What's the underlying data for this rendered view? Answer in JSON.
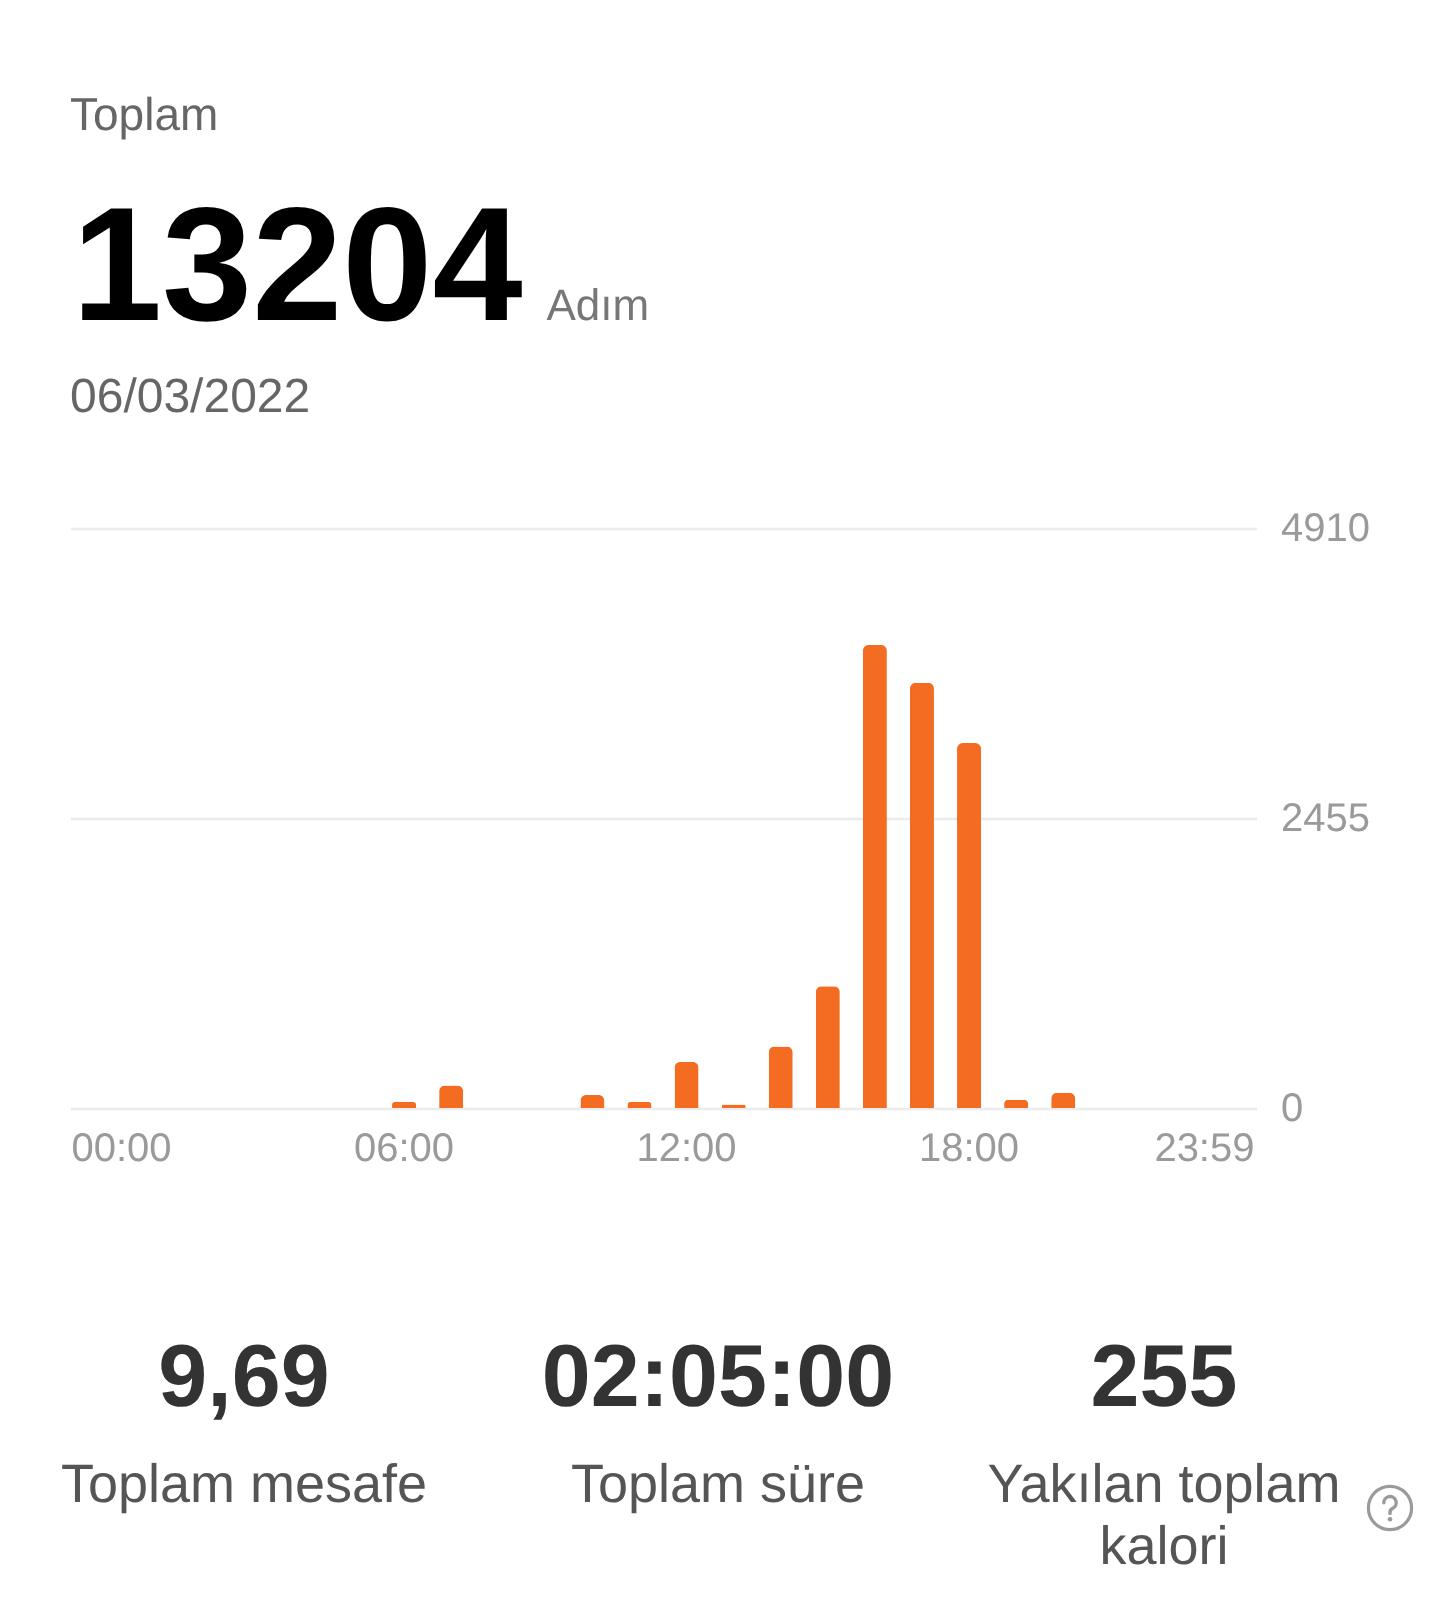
{
  "chart_data": {
    "type": "bar",
    "title": "Toplam",
    "categories": [
      "00:00",
      null,
      null,
      null,
      null,
      null,
      "06:00",
      null,
      null,
      null,
      null,
      null,
      "12:00",
      null,
      null,
      null,
      null,
      null,
      "18:00",
      null,
      null,
      null,
      null,
      "23:59"
    ],
    "values": [
      0,
      0,
      0,
      0,
      0,
      0,
      50,
      190,
      0,
      0,
      110,
      50,
      390,
      30,
      520,
      1030,
      3920,
      3600,
      3090,
      70,
      130,
      0,
      0,
      0
    ],
    "color": "#f36c21",
    "ylim": [
      0,
      4910
    ],
    "yticks": [
      0,
      2455,
      4910
    ],
    "grid": "y",
    "annotations": [
      "13204",
      "Adım",
      "06/03/2022",
      "9,69",
      "Toplam mesafe",
      "02:05:00",
      "Toplam süre",
      "255",
      "Yakılan toplam kalori"
    ]
  }
}
